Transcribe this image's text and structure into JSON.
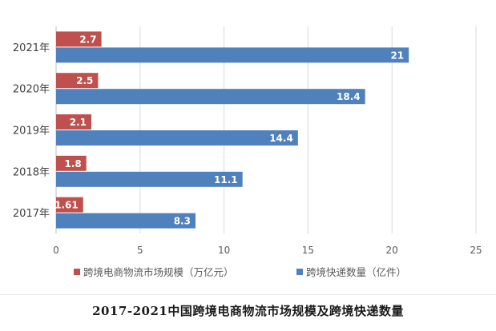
{
  "caption": "2017-2021中国跨境电商物流市场规模及跨境快递数量",
  "chart_data": {
    "type": "bar",
    "orientation": "horizontal",
    "categories": [
      "2017年",
      "2018年",
      "2019年",
      "2020年",
      "2021年"
    ],
    "series": [
      {
        "name": "跨境电商物流市场规模（万亿元）",
        "values": [
          1.61,
          1.8,
          2.1,
          2.5,
          2.7
        ],
        "labels": [
          "1.61",
          "1.8",
          "2.1",
          "2.5",
          "2.7"
        ],
        "color": "#c0504d"
      },
      {
        "name": "跨境快递数量（亿件）",
        "values": [
          8.3,
          11.1,
          14.4,
          18.4,
          21
        ],
        "labels": [
          "8.3",
          "11.1",
          "14.4",
          "18.4",
          "21"
        ],
        "color": "#4f81bd"
      }
    ],
    "xlim": [
      0,
      25
    ],
    "xticks": [
      "0",
      "5",
      "10",
      "15",
      "20",
      "25"
    ],
    "grid": "vertical",
    "legend_position": "bottom"
  },
  "colors": {
    "axis": "#bfbfbf",
    "grid": "#d9d9d9",
    "text": "#595959",
    "label_text": "#ffffff"
  }
}
